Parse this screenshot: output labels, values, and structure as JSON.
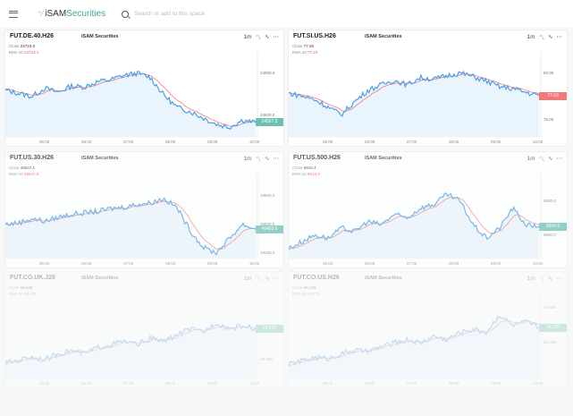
{
  "header": {
    "brand_prefix": "iSAM",
    "brand_suffix": "Securities",
    "search_placeholder": "Search or add to this space"
  },
  "colors": {
    "line": "#4a9ee8",
    "ema": "#f07a7a",
    "up_label": "#6cc0b0",
    "down_label": "#f07a7a"
  },
  "panels": [
    {
      "symbol": "FUT.DE.40.H26",
      "brand": "iSAM Securities",
      "close_label": "Close",
      "close": "24710.0",
      "ema_label": "EMA 10",
      "ema": "24723.1",
      "interval": "1m",
      "last_price": "24567.5",
      "price_dir": "up",
      "axis": [
        {
          "label": "24800.0",
          "value": 24800
        },
        {
          "label": "24600.0",
          "value": 24600
        }
      ],
      "yrange": [
        24500,
        24850
      ],
      "shape": [
        24720,
        24705,
        24690,
        24730,
        24710,
        24740,
        24735,
        24760,
        24770,
        24790,
        24800,
        24780,
        24700,
        24640,
        24620,
        24590,
        24560,
        24545,
        24580,
        24567.5
      ],
      "times": [
        "05:00",
        "06:00",
        "07:00",
        "08:00",
        "09:00",
        "10:00"
      ],
      "opacity": 1
    },
    {
      "symbol": "FUT.SI.US.H26",
      "brand": "iSAM Securities",
      "close_label": "Close",
      "close": "77.20",
      "ema_label": "EMA 10",
      "ema": "77.23",
      "interval": "1m",
      "last_price": "77.63",
      "price_dir": "down",
      "axis": [
        {
          "label": "80.00",
          "value": 80
        },
        {
          "label": "75.00",
          "value": 75
        }
      ],
      "yrange": [
        73.2,
        81.2
      ],
      "shape": [
        77.9,
        77.6,
        77.2,
        76.4,
        75.6,
        77.0,
        78.2,
        78.8,
        79.3,
        78.8,
        79.6,
        79.4,
        79.8,
        80.1,
        79.7,
        79.2,
        78.6,
        78.4,
        78.0,
        77.63
      ],
      "times": [
        "05:00",
        "06:00",
        "07:00",
        "08:00",
        "09:00",
        "10:00"
      ],
      "opacity": 1
    },
    {
      "symbol": "FUT.US.30.H26",
      "brand": "iSAM Securities",
      "close_label": "Close",
      "close": "49537.1",
      "ema_label": "EMA 10",
      "ema": "49547.6",
      "interval": "1m",
      "last_price": "49482.6",
      "price_dir": "up",
      "axis": [
        {
          "label": "49600.0",
          "value": 49600
        },
        {
          "label": "49500.0",
          "value": 49500
        },
        {
          "label": "49400.0",
          "value": 49400
        }
      ],
      "yrange": [
        49380,
        49640
      ],
      "shape": [
        49500,
        49505,
        49520,
        49510,
        49525,
        49535,
        49540,
        49545,
        49555,
        49560,
        49570,
        49575,
        49590,
        49560,
        49480,
        49420,
        49400,
        49450,
        49500,
        49482.6
      ],
      "times": [
        "05:00",
        "06:00",
        "07:00",
        "08:00",
        "09:00",
        "10:00"
      ],
      "opacity": 0.72
    },
    {
      "symbol": "FUT.US.500.H26",
      "brand": "iSAM Securities",
      "close_label": "Close",
      "close": "6915.4",
      "ema_label": "EMA 10",
      "ema": "6913.4",
      "interval": "1m",
      "last_price": "6904.9",
      "price_dir": "up",
      "axis": [
        {
          "label": "6920.0",
          "value": 6920
        },
        {
          "label": "6900.0",
          "value": 6900
        }
      ],
      "yrange": [
        6886,
        6930
      ],
      "shape": [
        6892,
        6896,
        6900,
        6898,
        6904,
        6902,
        6908,
        6906,
        6912,
        6910,
        6916,
        6918,
        6924,
        6920,
        6906,
        6898,
        6904,
        6916,
        6906,
        6904.9
      ],
      "times": [
        "05:00",
        "06:00",
        "07:00",
        "08:00",
        "09:00",
        "10:00"
      ],
      "opacity": 0.72
    },
    {
      "symbol": "FUT.CO.UK.J26",
      "brand": "iSAM Securities",
      "close_label": "Close",
      "close": "68.540",
      "ema_label": "EMA 10",
      "ema": "68.299",
      "interval": "1m",
      "last_price": "68.505",
      "price_dir": "up",
      "axis": [
        {
          "label": "68.000",
          "value": 68.0
        }
      ],
      "yrange": [
        67.7,
        68.9
      ],
      "shape": [
        67.95,
        68.0,
        68.05,
        68.0,
        68.1,
        68.15,
        68.1,
        68.2,
        68.25,
        68.3,
        68.25,
        68.35,
        68.3,
        68.4,
        68.5,
        68.45,
        68.6,
        68.5,
        68.55,
        68.505
      ],
      "times": [
        "05:00",
        "06:00",
        "07:00",
        "08:00",
        "09:00",
        "10:00"
      ],
      "opacity": 0.3
    },
    {
      "symbol": "FUT.CO.US.H26",
      "brand": "iSAM Securities",
      "close_label": "Close",
      "close": "64.245",
      "ema_label": "EMA 10",
      "ema": "64.274",
      "interval": "1m",
      "last_price": "64.220",
      "price_dir": "up",
      "axis": [
        {
          "label": "64.500",
          "value": 64.5
        },
        {
          "label": "64.000",
          "value": 64.0
        }
      ],
      "yrange": [
        63.5,
        64.55
      ],
      "shape": [
        63.7,
        63.75,
        63.8,
        63.78,
        63.85,
        63.9,
        63.88,
        63.95,
        64.0,
        64.05,
        64.0,
        64.1,
        64.05,
        64.15,
        64.2,
        64.15,
        64.4,
        64.25,
        64.3,
        64.22
      ],
      "times": [
        "05:00",
        "06:00",
        "07:00",
        "08:00",
        "09:00",
        "10:00"
      ],
      "opacity": 0.3
    }
  ]
}
